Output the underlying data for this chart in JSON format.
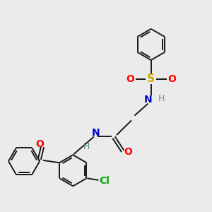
{
  "background_color": "#ebebeb",
  "bond_color": "#1a1a1a",
  "atom_colors": {
    "O": "#ff0000",
    "N": "#0000cc",
    "S": "#ccaa00",
    "Cl": "#00aa00",
    "H_amide": "#558888",
    "H_sulfonamide": "#888888"
  },
  "figsize": [
    3.0,
    3.0
  ],
  "dpi": 100,
  "lw": 1.4,
  "r": 0.52
}
